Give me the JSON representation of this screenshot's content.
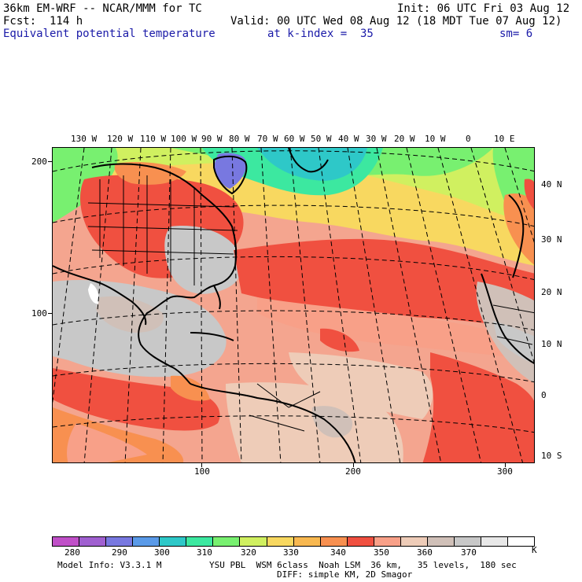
{
  "header": {
    "model": "36km EM-WRF -- NCAR/MMM for TC",
    "init": "Init: 06 UTC Fri 03 Aug 12",
    "forecast": "Fcst:  114 h",
    "valid": "Valid: 00 UTC Wed 08 Aug 12 (18 MDT Tue 07 Aug 12)",
    "field": "Equivalent potential temperature",
    "level": "at k-index =  35",
    "smoothing": "sm= 6"
  },
  "map": {
    "lon_labels": [
      "130 W",
      "120 W",
      "110 W",
      "100 W",
      "90 W",
      "80 W",
      "70 W",
      "60 W",
      "50 W",
      "40 W",
      "30 W",
      "20 W",
      "10 W",
      "0",
      "10 E"
    ],
    "lat_labels": [
      "40 N",
      "30 N",
      "20 N",
      "10 N",
      "0",
      "10 S"
    ],
    "y_axis_labels": [
      "200",
      "100"
    ],
    "x_axis_labels": [
      "100",
      "200",
      "300"
    ]
  },
  "colorbar": {
    "colors": [
      "#c050c8",
      "#a060d0",
      "#7878e0",
      "#5a9ae8",
      "#2ec8c8",
      "#3ce8a0",
      "#78f070",
      "#d0f060",
      "#f8d860",
      "#f8b850",
      "#f89050",
      "#f05040",
      "#f8a088",
      "#eeccb8",
      "#d0c0b8",
      "#c8c8c8",
      "#e8e8e8",
      "#ffffff"
    ],
    "labels": [
      "280",
      "290",
      "300",
      "310",
      "320",
      "330",
      "340",
      "350",
      "360",
      "370"
    ],
    "unit": "K"
  },
  "footer": {
    "model_info": "Model Info: V3.3.1 M",
    "physics": "YSU PBL  WSM 6class  Noah LSM  36 km,   35 levels,  180 sec",
    "diffusion": "DIFF: simple KM, 2D Smagor"
  }
}
